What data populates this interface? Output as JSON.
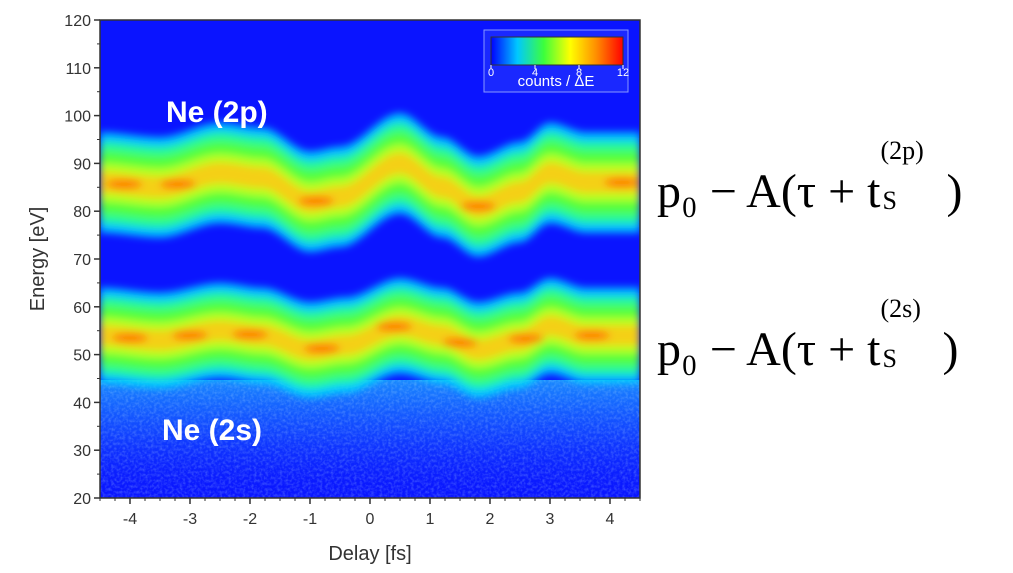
{
  "chart_data": {
    "type": "heatmap",
    "xlabel": "Delay [fs]",
    "ylabel": "Energy [eV]",
    "xlim": [
      -4.5,
      4.5
    ],
    "ylim": [
      20,
      120
    ],
    "x_ticks": [
      -4,
      -3,
      -2,
      -1,
      0,
      1,
      2,
      3,
      4
    ],
    "y_ticks": [
      20,
      30,
      40,
      50,
      60,
      70,
      80,
      90,
      100,
      110,
      120
    ],
    "colorbar": {
      "label": "counts / ΔE",
      "ticks": [
        0,
        4,
        8,
        12
      ],
      "range": [
        0,
        12
      ],
      "colors": [
        "#0000ff",
        "#00c8ff",
        "#3cff3c",
        "#ffff00",
        "#ff8c00",
        "#ff0000"
      ]
    },
    "bands": [
      {
        "label": "Ne (2p)",
        "equation": {
          "main": "p₀ − A(τ + t",
          "sub": "S",
          "sup": "(2p)",
          "close": ")"
        },
        "center_eV": [
          [
            -4.5,
            86
          ],
          [
            -3.5,
            85
          ],
          [
            -2.5,
            88
          ],
          [
            -1.8,
            87
          ],
          [
            -1.0,
            82
          ],
          [
            -0.5,
            83
          ],
          [
            0.5,
            90
          ],
          [
            1.2,
            85
          ],
          [
            1.8,
            81
          ],
          [
            2.5,
            84
          ],
          [
            3.0,
            88
          ],
          [
            3.6,
            86
          ],
          [
            4.5,
            86
          ]
        ]
      },
      {
        "label": "Ne (2s)",
        "equation": {
          "main": "p₀ − A(τ + t",
          "sub": "S",
          "sup": "(2s)",
          "close": ")"
        },
        "center_eV": [
          [
            -4.5,
            54
          ],
          [
            -3.5,
            53
          ],
          [
            -2.5,
            55
          ],
          [
            -1.8,
            54
          ],
          [
            -1.0,
            51
          ],
          [
            -0.4,
            52
          ],
          [
            0.5,
            56
          ],
          [
            1.2,
            54
          ],
          [
            1.8,
            51
          ],
          [
            2.5,
            53
          ],
          [
            3.0,
            56
          ],
          [
            3.6,
            54
          ],
          [
            4.5,
            54
          ]
        ]
      }
    ]
  }
}
